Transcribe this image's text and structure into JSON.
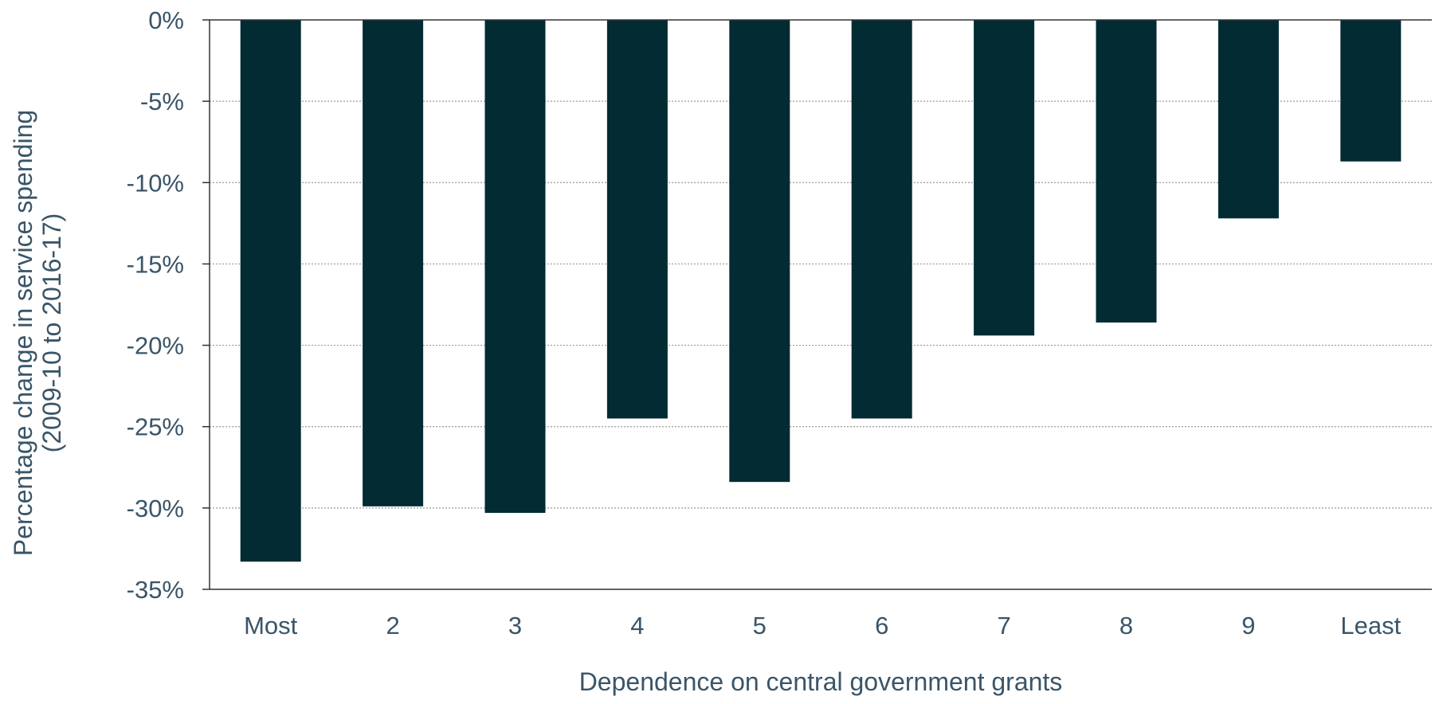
{
  "chart_data": {
    "type": "bar",
    "categories": [
      "Most",
      "2",
      "3",
      "4",
      "5",
      "6",
      "7",
      "8",
      "9",
      "Least"
    ],
    "series": [
      {
        "values": [
          -33.3,
          -29.9,
          -30.3,
          -24.5,
          -28.4,
          -24.5,
          -19.4,
          -18.6,
          -12.2,
          -8.7
        ]
      }
    ],
    "xlabel": "Dependence on central government grants",
    "ylabel_lines": [
      "Percentage change in service spending",
      "(2009-10 to 2016-17)"
    ],
    "ylim": [
      -35,
      0
    ],
    "yticks": [
      0,
      -5,
      -10,
      -15,
      -20,
      -25,
      -30,
      -35
    ],
    "ytick_labels": [
      "0%",
      "-5%",
      "-10%",
      "-15%",
      "-20%",
      "-25%",
      "-30%",
      "-35%"
    ],
    "grid": "horizontal dotted",
    "legend": "none",
    "colors": {
      "bar": "#022b33",
      "text": "#3a5568",
      "axis": "#333333",
      "grid": "#9a9a9a"
    }
  }
}
